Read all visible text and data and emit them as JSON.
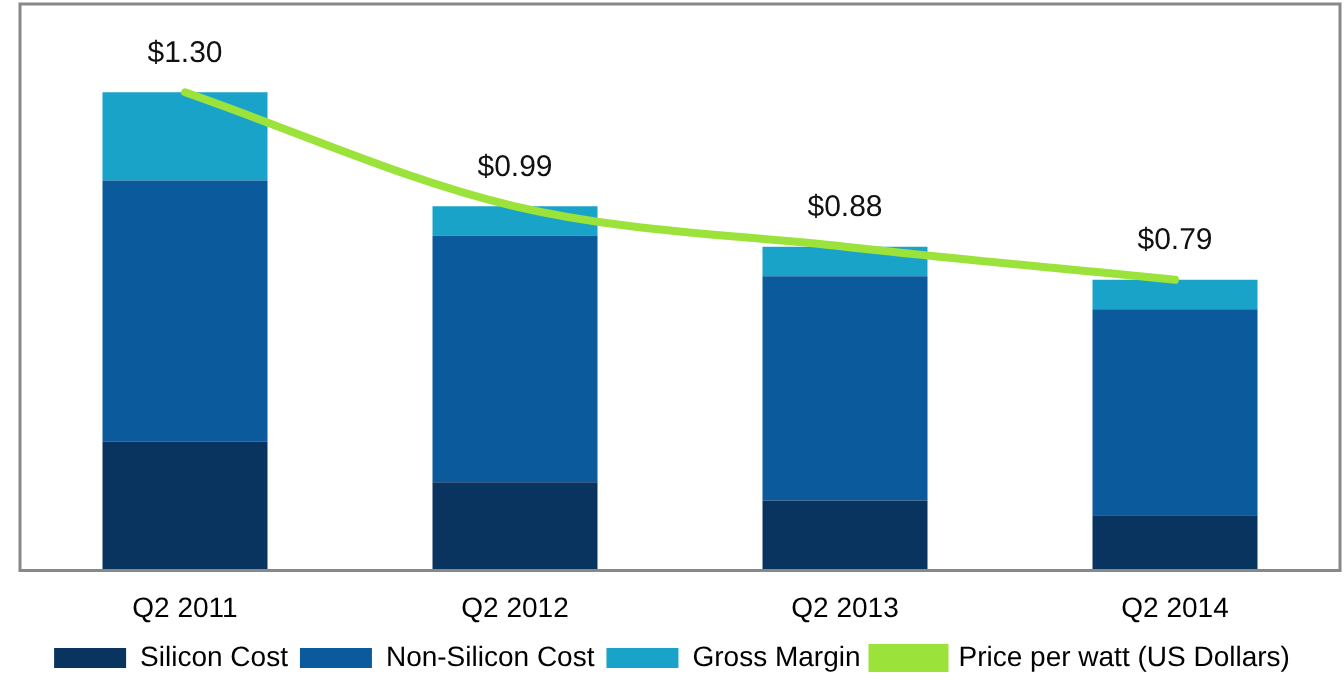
{
  "chart_data": {
    "type": "bar",
    "stacked": true,
    "categories": [
      "Q2 2011",
      "Q2 2012",
      "Q2 2013",
      "Q2 2014"
    ],
    "ylim": [
      0,
      1.54
    ],
    "tick_labels": "x",
    "grid": false,
    "legend": "bottom",
    "series": [
      {
        "name": "Silicon Cost",
        "color": "#0a3460",
        "values": [
          0.35,
          0.24,
          0.19,
          0.15
        ]
      },
      {
        "name": "Non-Silicon Cost",
        "color": "#0b5a9c",
        "values": [
          0.71,
          0.67,
          0.61,
          0.56
        ]
      },
      {
        "name": "Gross Margin",
        "color": "#1aa3c8",
        "values": [
          0.24,
          0.08,
          0.08,
          0.08
        ]
      },
      {
        "name": "Price per watt (US Dollars)",
        "type": "line",
        "color": "#9be33a",
        "values": [
          1.3,
          0.99,
          0.88,
          0.79
        ],
        "value_labels": [
          "$1.30",
          "$0.99",
          "$0.88",
          "$0.79"
        ],
        "marker": "none"
      }
    ]
  }
}
